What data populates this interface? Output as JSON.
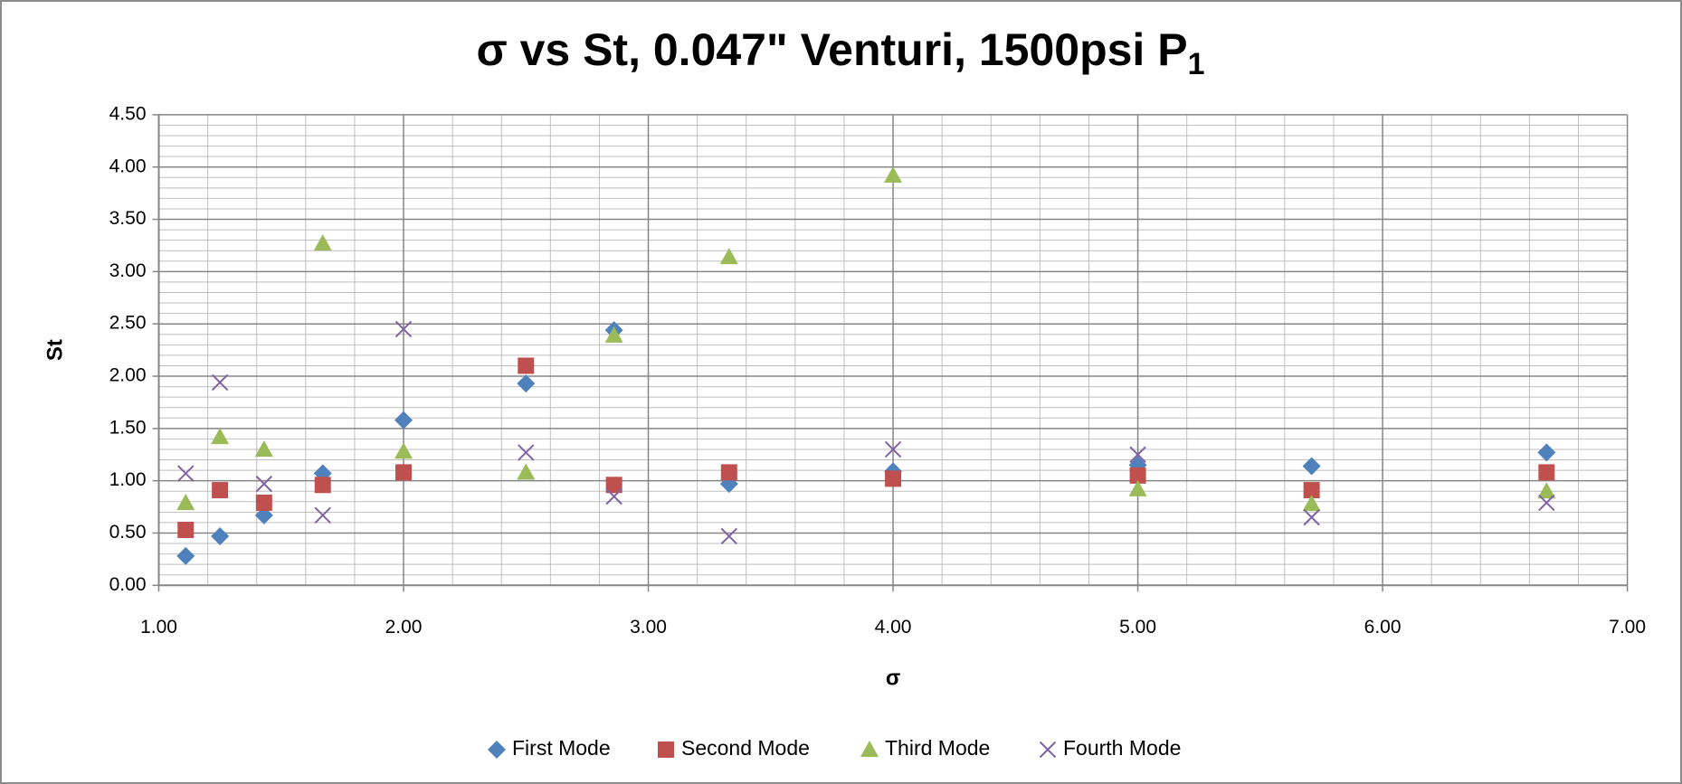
{
  "chart_data": {
    "type": "scatter",
    "title": "σ vs St, 0.047\" Venturi, 1500psi P",
    "title_subscript": "1",
    "x_label": "σ",
    "y_label": "St",
    "xlim": [
      1,
      7
    ],
    "ylim": [
      0,
      4.5
    ],
    "xticks": [
      {
        "value": 1,
        "label": "1.00"
      },
      {
        "value": 2,
        "label": "2.00"
      },
      {
        "value": 3,
        "label": "3.00"
      },
      {
        "value": 4,
        "label": "4.00"
      },
      {
        "value": 5,
        "label": "5.00"
      },
      {
        "value": 6,
        "label": "6.00"
      },
      {
        "value": 7,
        "label": "7.00"
      }
    ],
    "yticks": [
      {
        "value": 0,
        "label": "0.00"
      },
      {
        "value": 0.5,
        "label": "0.50"
      },
      {
        "value": 1,
        "label": "1.00"
      },
      {
        "value": 1.5,
        "label": "1.50"
      },
      {
        "value": 2,
        "label": "2.00"
      },
      {
        "value": 2.5,
        "label": "2.50"
      },
      {
        "value": 3,
        "label": "3.00"
      },
      {
        "value": 3.5,
        "label": "3.50"
      },
      {
        "value": 4,
        "label": "4.00"
      },
      {
        "value": 4.5,
        "label": "4.50"
      }
    ],
    "grid": true,
    "minor_step": {
      "x": 0.2,
      "y": 0.1
    },
    "legend": "bottom",
    "series": [
      {
        "name": "First Mode",
        "color": "#4f81bd",
        "marker": "diamond",
        "x": [
          1.11,
          1.25,
          1.43,
          1.67,
          2.0,
          2.5,
          2.86,
          3.33,
          4.0,
          5.0,
          5.71,
          6.67
        ],
        "values": [
          0.28,
          0.47,
          0.67,
          1.07,
          1.58,
          1.93,
          2.44,
          0.97,
          1.09,
          1.15,
          1.14,
          1.27
        ]
      },
      {
        "name": "Second Mode",
        "color": "#c0504d",
        "marker": "square",
        "x": [
          1.11,
          1.25,
          1.43,
          1.67,
          2.0,
          2.5,
          2.86,
          3.33,
          4.0,
          5.0,
          5.71,
          6.67
        ],
        "values": [
          0.53,
          0.91,
          0.79,
          0.96,
          1.08,
          2.1,
          0.96,
          1.08,
          1.02,
          1.05,
          0.91,
          1.08
        ]
      },
      {
        "name": "Third Mode",
        "color": "#9bbb59",
        "marker": "triangle",
        "x": [
          1.11,
          1.25,
          1.43,
          1.67,
          2.0,
          2.5,
          2.86,
          3.33,
          4.0,
          5.0,
          5.71,
          6.67
        ],
        "values": [
          0.79,
          1.42,
          1.3,
          3.27,
          1.28,
          1.08,
          2.39,
          3.14,
          3.92,
          0.92,
          0.78,
          0.9
        ]
      },
      {
        "name": "Fourth Mode",
        "color": "#8064a2",
        "marker": "x",
        "x": [
          1.11,
          1.25,
          1.43,
          1.67,
          2.0,
          2.5,
          2.86,
          3.33,
          4.0,
          5.0,
          5.71,
          6.67
        ],
        "values": [
          1.07,
          1.94,
          0.97,
          0.67,
          2.45,
          1.27,
          0.85,
          0.47,
          1.3,
          1.25,
          0.65,
          0.79
        ]
      }
    ]
  }
}
